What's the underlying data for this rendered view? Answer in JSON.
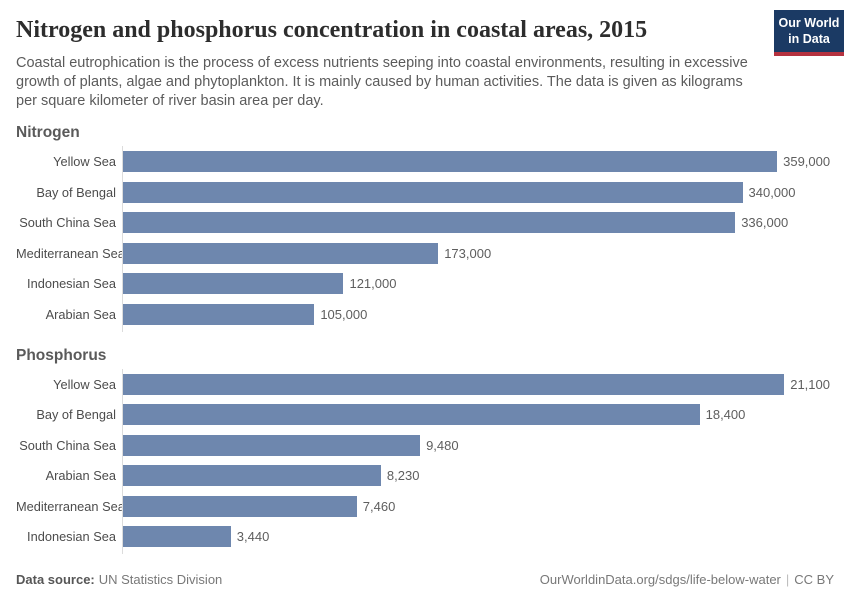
{
  "header": {
    "title": "Nitrogen and phosphorus concentration in coastal areas, 2015",
    "subtitle": "Coastal eutrophication is the process of excess nutrients seeping into coastal environments, resulting in excessive growth of plants, algae and phytoplankton. It is mainly caused by human activities. The data is given as kilograms per square kilometer of river basin area per day.",
    "logo": {
      "line1": "Our World",
      "line2": "in Data"
    }
  },
  "chart_data": [
    {
      "type": "bar",
      "orientation": "horizontal",
      "title": "Nitrogen",
      "unit": "kilograms per square kilometer of river basin area per day",
      "categories": [
        "Yellow Sea",
        "Bay of Bengal",
        "South China Sea",
        "Mediterranean Sea",
        "Indonesian Sea",
        "Arabian Sea"
      ],
      "values": [
        359000,
        340000,
        336000,
        173000,
        121000,
        105000
      ],
      "value_labels": [
        "359,000",
        "340,000",
        "336,000",
        "173,000",
        "121,000",
        "105,000"
      ],
      "xlabel": "",
      "ylabel": "",
      "grid": false,
      "legend": "none",
      "bar_max_pct": 92
    },
    {
      "type": "bar",
      "orientation": "horizontal",
      "title": "Phosphorus",
      "unit": "kilograms per square kilometer of river basin area per day",
      "categories": [
        "Yellow Sea",
        "Bay of Bengal",
        "South China Sea",
        "Arabian Sea",
        "Mediterranean Sea",
        "Indonesian Sea"
      ],
      "values": [
        21100,
        18400,
        9480,
        8230,
        7460,
        3440
      ],
      "value_labels": [
        "21,100",
        "18,400",
        "9,480",
        "8,230",
        "7,460",
        "3,440"
      ],
      "xlabel": "",
      "ylabel": "",
      "grid": false,
      "legend": "none",
      "bar_max_pct": 93
    }
  ],
  "footer": {
    "source_label": "Data source:",
    "source_value": "UN Statistics Division",
    "link": "OurWorldinData.org/sdgs/life-below-water",
    "separator": "|",
    "license": "CC BY"
  },
  "colors": {
    "bar": "#6e87ae",
    "logo_bg": "#1b3a64",
    "logo_accent": "#b5323f",
    "title_text": "#2d2d2d",
    "subtitle_text": "#5b5b5b",
    "axis_line": "#dcdcdc"
  }
}
